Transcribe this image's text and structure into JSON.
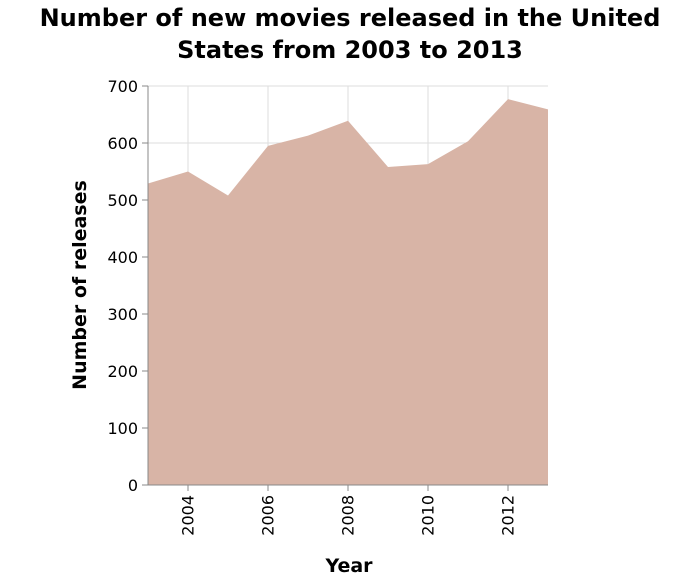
{
  "chart_data": {
    "type": "area",
    "title": "Number of new movies released in the United States from 2003 to 2013",
    "title_lines": [
      "Number of new movies released in the United",
      "States from 2003 to 2013"
    ],
    "xlabel": "Year",
    "ylabel": "Number of releases",
    "x": [
      2003,
      2004,
      2005,
      2006,
      2007,
      2008,
      2009,
      2010,
      2011,
      2012,
      2013
    ],
    "values": [
      529,
      550,
      508,
      595,
      613,
      639,
      558,
      563,
      603,
      677,
      659
    ],
    "xlim": [
      2003,
      2013
    ],
    "ylim": [
      0,
      700
    ],
    "x_ticks": [
      2004,
      2006,
      2008,
      2010,
      2012
    ],
    "y_ticks": [
      0,
      100,
      200,
      300,
      400,
      500,
      600,
      700
    ],
    "grid": true,
    "fill_color": "#d8b4a6"
  }
}
